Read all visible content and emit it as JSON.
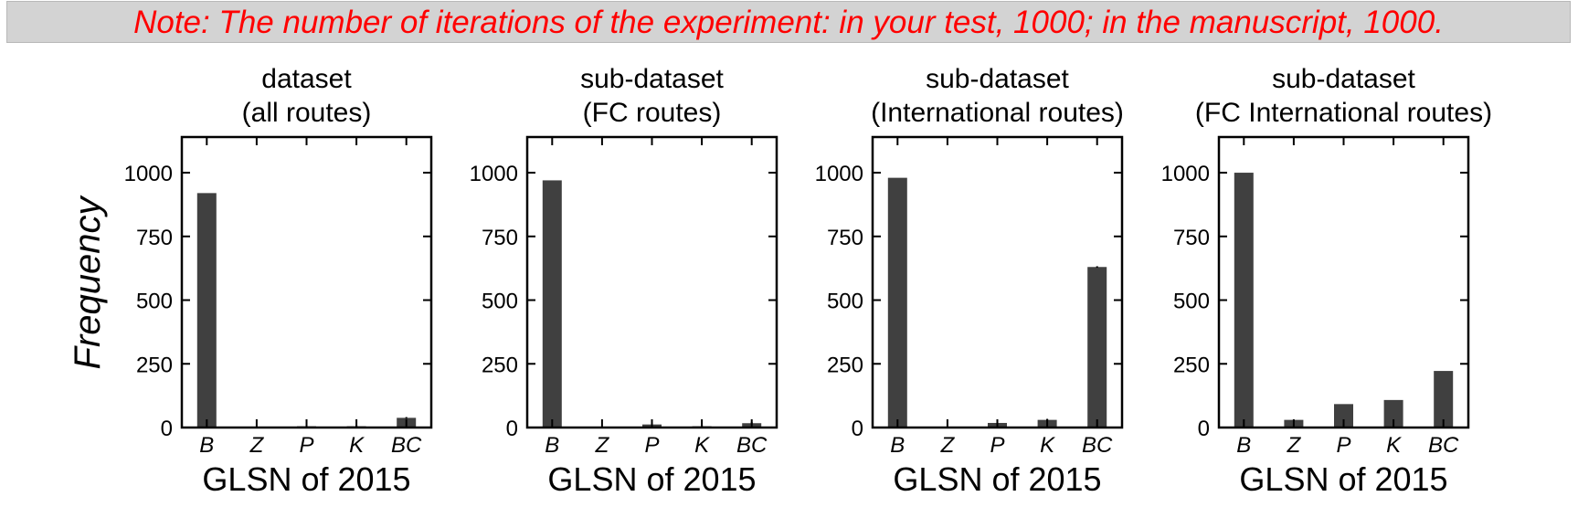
{
  "note": "Note: The number of iterations of the experiment: in your test, 1000; in the manuscript, 1000.",
  "colors": {
    "note_text": "#ff0000",
    "note_bg": "#d3d3d3",
    "bar": "#404040",
    "axis": "#000000"
  },
  "chart_data": [
    {
      "type": "bar",
      "title": "dataset\n(all routes)",
      "xlabel": "GLSN of 2015",
      "ylabel": "Frequency",
      "categories": [
        "B",
        "Z",
        "P",
        "K",
        "BC"
      ],
      "values": [
        920,
        0,
        5,
        5,
        38
      ],
      "errors": [
        0,
        0,
        4,
        3,
        3
      ],
      "ylim": [
        0,
        1140
      ],
      "yticks": [
        0,
        250,
        500,
        750,
        1000
      ],
      "grid": false
    },
    {
      "type": "bar",
      "title": "sub-dataset\n(FC routes)",
      "xlabel": "GLSN of 2015",
      "ylabel": "",
      "categories": [
        "B",
        "Z",
        "P",
        "K",
        "BC"
      ],
      "values": [
        970,
        0,
        12,
        5,
        17
      ],
      "errors": [
        0,
        0,
        5,
        3,
        5
      ],
      "ylim": [
        0,
        1140
      ],
      "yticks": [
        0,
        250,
        500,
        750,
        1000
      ],
      "grid": false
    },
    {
      "type": "bar",
      "title": "sub-dataset\n(International routes)",
      "xlabel": "GLSN of 2015",
      "ylabel": "",
      "categories": [
        "B",
        "Z",
        "P",
        "K",
        "BC"
      ],
      "values": [
        980,
        0,
        18,
        30,
        630
      ],
      "errors": [
        0,
        0,
        4,
        4,
        3
      ],
      "ylim": [
        0,
        1140
      ],
      "yticks": [
        0,
        250,
        500,
        750,
        1000
      ],
      "grid": false
    },
    {
      "type": "bar",
      "title": "sub-dataset\n(FC International routes)",
      "xlabel": "GLSN of 2015",
      "ylabel": "",
      "categories": [
        "B",
        "Z",
        "P",
        "K",
        "BC"
      ],
      "values": [
        1000,
        30,
        92,
        108,
        222
      ],
      "errors": [
        0,
        0,
        0,
        0,
        0
      ],
      "ylim": [
        0,
        1140
      ],
      "yticks": [
        0,
        250,
        500,
        750,
        1000
      ],
      "grid": false
    }
  ]
}
